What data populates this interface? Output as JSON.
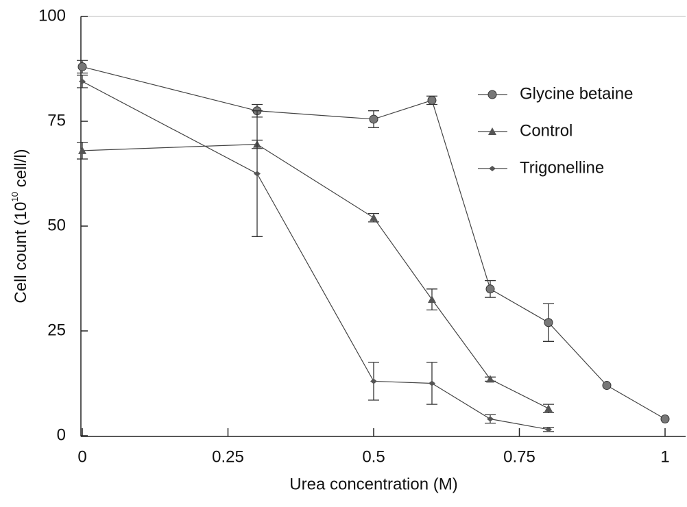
{
  "chart_data": {
    "type": "line",
    "x_label": "Urea concentration (M)",
    "y_label": [
      "Cell count (10",
      "10",
      " cell/l)"
    ],
    "xlim": [
      0,
      1
    ],
    "xticks": [
      0,
      0.25,
      0.5,
      0.75,
      1
    ],
    "ylim": [
      0,
      100
    ],
    "yticks": [
      0,
      25,
      50,
      75,
      100
    ],
    "series": [
      {
        "name": "Glycine betaine",
        "marker": "circle",
        "color": "#777777",
        "x": [
          0,
          0.3,
          0.5,
          0.6,
          0.7,
          0.8,
          0.9,
          1
        ],
        "values": [
          88,
          77.5,
          75.5,
          80,
          35,
          27,
          12,
          4
        ],
        "errors": [
          1.5,
          1.5,
          2,
          1,
          2,
          4.5,
          null,
          null
        ]
      },
      {
        "name": "Control",
        "marker": "triangle",
        "color": "#555555",
        "x": [
          0,
          0.3,
          0.5,
          0.6,
          0.7,
          0.8
        ],
        "values": [
          68,
          69.5,
          52,
          32.5,
          13.5,
          6.5
        ],
        "errors": [
          2,
          1,
          1,
          2.5,
          0.5,
          1
        ]
      },
      {
        "name": "Trigonelline",
        "marker": "diamond",
        "color": "#555555",
        "x": [
          0,
          0.3,
          0.5,
          0.6,
          0.7,
          0.8
        ],
        "values": [
          84.5,
          62.5,
          13,
          12.5,
          4,
          1.5
        ],
        "errors": [
          1.5,
          15,
          4.5,
          5,
          1,
          0.5
        ]
      }
    ]
  }
}
